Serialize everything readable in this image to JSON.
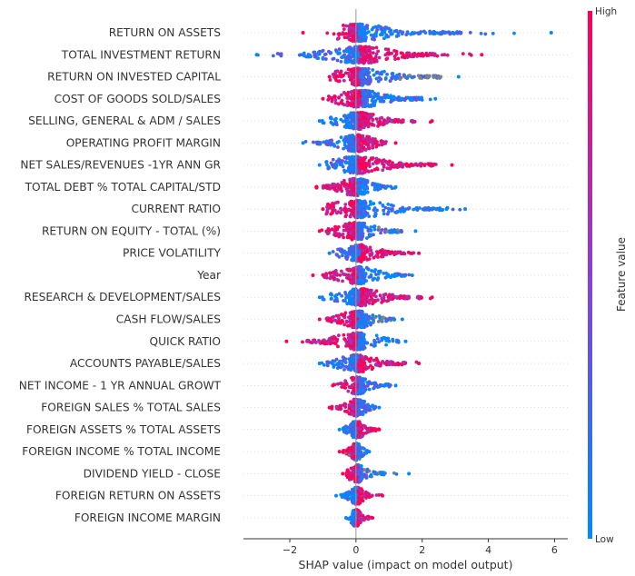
{
  "chart_data": {
    "type": "scatter",
    "subtype": "shap-beeswarm",
    "xlabel": "SHAP value (impact on model output)",
    "xticks": [
      -2,
      0,
      2,
      4,
      6
    ],
    "xlim": [
      -3.4,
      6.4
    ],
    "zero_line": true,
    "colorbar": {
      "title": "Feature value",
      "high_label": "High",
      "low_label": "Low",
      "high_color": "#ff0052",
      "mid_color": "#8a3fd6",
      "low_color": "#008afb",
      "missing_color": "#808080"
    },
    "features": [
      {
        "name": "RETURN ON ASSETS",
        "min": -1.6,
        "max": 5.9,
        "core": [
          -0.35,
          0.45
        ],
        "bulk": [
          -0.6,
          3.2
        ],
        "density": 1.0,
        "high_side": "left",
        "gray_range": null
      },
      {
        "name": "TOTAL INVESTMENT RETURN",
        "min": -3.0,
        "max": 3.8,
        "core": [
          -0.6,
          0.8
        ],
        "bulk": [
          -1.6,
          2.4
        ],
        "density": 1.0,
        "high_side": "right",
        "gray_range": null
      },
      {
        "name": "RETURN ON INVESTED CAPITAL",
        "min": -0.8,
        "max": 3.1,
        "core": [
          -0.4,
          0.6
        ],
        "bulk": [
          -0.7,
          2.6
        ],
        "density": 0.85,
        "high_side": "left",
        "gray_range": [
          1.3,
          3.1
        ]
      },
      {
        "name": "COST OF GOODS SOLD/SALES",
        "min": -1.0,
        "max": 2.4,
        "core": [
          -0.4,
          0.7
        ],
        "bulk": [
          -0.8,
          2.0
        ],
        "density": 0.9,
        "high_side": "left",
        "gray_range": null
      },
      {
        "name": "SELLING, GENERAL & ADM / SALES",
        "min": -1.1,
        "max": 2.3,
        "core": [
          -0.5,
          0.6
        ],
        "bulk": [
          -0.8,
          1.8
        ],
        "density": 0.85,
        "high_side": "right",
        "gray_range": null
      },
      {
        "name": "OPERATING PROFIT MARGIN",
        "min": -1.6,
        "max": 1.2,
        "core": [
          -0.5,
          0.5
        ],
        "bulk": [
          -1.2,
          0.9
        ],
        "density": 0.8,
        "high_side": "right",
        "gray_range": null
      },
      {
        "name": "NET SALES/REVENUES -1YR ANN GR",
        "min": -1.1,
        "max": 2.9,
        "core": [
          -0.5,
          0.6
        ],
        "bulk": [
          -0.9,
          2.4
        ],
        "density": 0.85,
        "high_side": "right",
        "gray_range": null
      },
      {
        "name": "TOTAL DEBT % TOTAL CAPITAL/STD",
        "min": -1.2,
        "max": 1.2,
        "core": [
          -0.4,
          0.4
        ],
        "bulk": [
          -1.0,
          1.0
        ],
        "density": 0.8,
        "high_side": "left",
        "gray_range": null
      },
      {
        "name": "CURRENT RATIO",
        "min": -1.0,
        "max": 3.3,
        "core": [
          -0.4,
          0.5
        ],
        "bulk": [
          -0.9,
          2.8
        ],
        "density": 0.85,
        "high_side": "left",
        "gray_range": null
      },
      {
        "name": "RETURN ON EQUITY - TOTAL (%)",
        "min": -1.1,
        "max": 1.8,
        "core": [
          -0.4,
          0.4
        ],
        "bulk": [
          -0.9,
          1.4
        ],
        "density": 0.8,
        "high_side": "left",
        "gray_range": [
          0.6,
          1.8
        ]
      },
      {
        "name": "PRICE VOLATILITY",
        "min": -0.8,
        "max": 1.9,
        "core": [
          -0.3,
          0.5
        ],
        "bulk": [
          -0.6,
          1.6
        ],
        "density": 0.8,
        "high_side": "right",
        "gray_range": null
      },
      {
        "name": "Year",
        "min": -1.3,
        "max": 1.7,
        "core": [
          -0.3,
          0.4
        ],
        "bulk": [
          -1.0,
          1.5
        ],
        "density": 0.75,
        "high_side": "left",
        "gray_range": null
      },
      {
        "name": "RESEARCH & DEVELOPMENT/SALES",
        "min": -1.1,
        "max": 2.3,
        "core": [
          -0.4,
          0.6
        ],
        "bulk": [
          -0.8,
          2.0
        ],
        "density": 0.85,
        "high_side": "right",
        "gray_range": null
      },
      {
        "name": "CASH FLOW/SALES",
        "min": -1.1,
        "max": 1.4,
        "core": [
          -0.3,
          0.4
        ],
        "bulk": [
          -0.9,
          1.2
        ],
        "density": 0.75,
        "high_side": "left",
        "gray_range": [
          0.4,
          1.4
        ]
      },
      {
        "name": "QUICK RATIO",
        "min": -2.1,
        "max": 1.5,
        "core": [
          -0.3,
          0.4
        ],
        "bulk": [
          -1.5,
          1.3
        ],
        "density": 0.75,
        "high_side": "left",
        "gray_range": null
      },
      {
        "name": "ACCOUNTS PAYABLE/SALES",
        "min": -1.1,
        "max": 1.9,
        "core": [
          -0.3,
          0.4
        ],
        "bulk": [
          -0.9,
          1.5
        ],
        "density": 0.75,
        "high_side": "right",
        "gray_range": null
      },
      {
        "name": "NET INCOME - 1 YR ANNUAL GROWT",
        "min": -0.7,
        "max": 1.2,
        "core": [
          -0.2,
          0.3
        ],
        "bulk": [
          -0.5,
          1.0
        ],
        "density": 0.6,
        "high_side": "left",
        "gray_range": null
      },
      {
        "name": "FOREIGN SALES % TOTAL SALES",
        "min": -0.8,
        "max": 0.7,
        "core": [
          -0.2,
          0.25
        ],
        "bulk": [
          -0.6,
          0.6
        ],
        "density": 0.6,
        "high_side": "left",
        "gray_range": null
      },
      {
        "name": "FOREIGN ASSETS % TOTAL ASSETS",
        "min": -0.5,
        "max": 0.7,
        "core": [
          -0.2,
          0.25
        ],
        "bulk": [
          -0.4,
          0.6
        ],
        "density": 0.6,
        "high_side": "right",
        "gray_range": null
      },
      {
        "name": "FOREIGN INCOME % TOTAL INCOME",
        "min": -0.5,
        "max": 0.4,
        "core": [
          -0.2,
          0.2
        ],
        "bulk": [
          -0.4,
          0.35
        ],
        "density": 0.55,
        "high_side": "left",
        "gray_range": [
          -0.5,
          -0.2
        ]
      },
      {
        "name": "DIVIDEND YIELD - CLOSE",
        "min": -0.4,
        "max": 1.6,
        "core": [
          -0.15,
          0.25
        ],
        "bulk": [
          -0.3,
          0.9
        ],
        "density": 0.55,
        "high_side": "left",
        "gray_range": [
          0.2,
          1.6
        ]
      },
      {
        "name": "FOREIGN RETURN ON ASSETS",
        "min": -0.6,
        "max": 0.8,
        "core": [
          -0.15,
          0.2
        ],
        "bulk": [
          -0.4,
          0.5
        ],
        "density": 0.5,
        "high_side": "right",
        "gray_range": null
      },
      {
        "name": "FOREIGN INCOME MARGIN",
        "min": -0.3,
        "max": 0.5,
        "core": [
          -0.15,
          0.15
        ],
        "bulk": [
          -0.25,
          0.4
        ],
        "density": 0.5,
        "high_side": "right",
        "gray_range": null
      }
    ]
  }
}
